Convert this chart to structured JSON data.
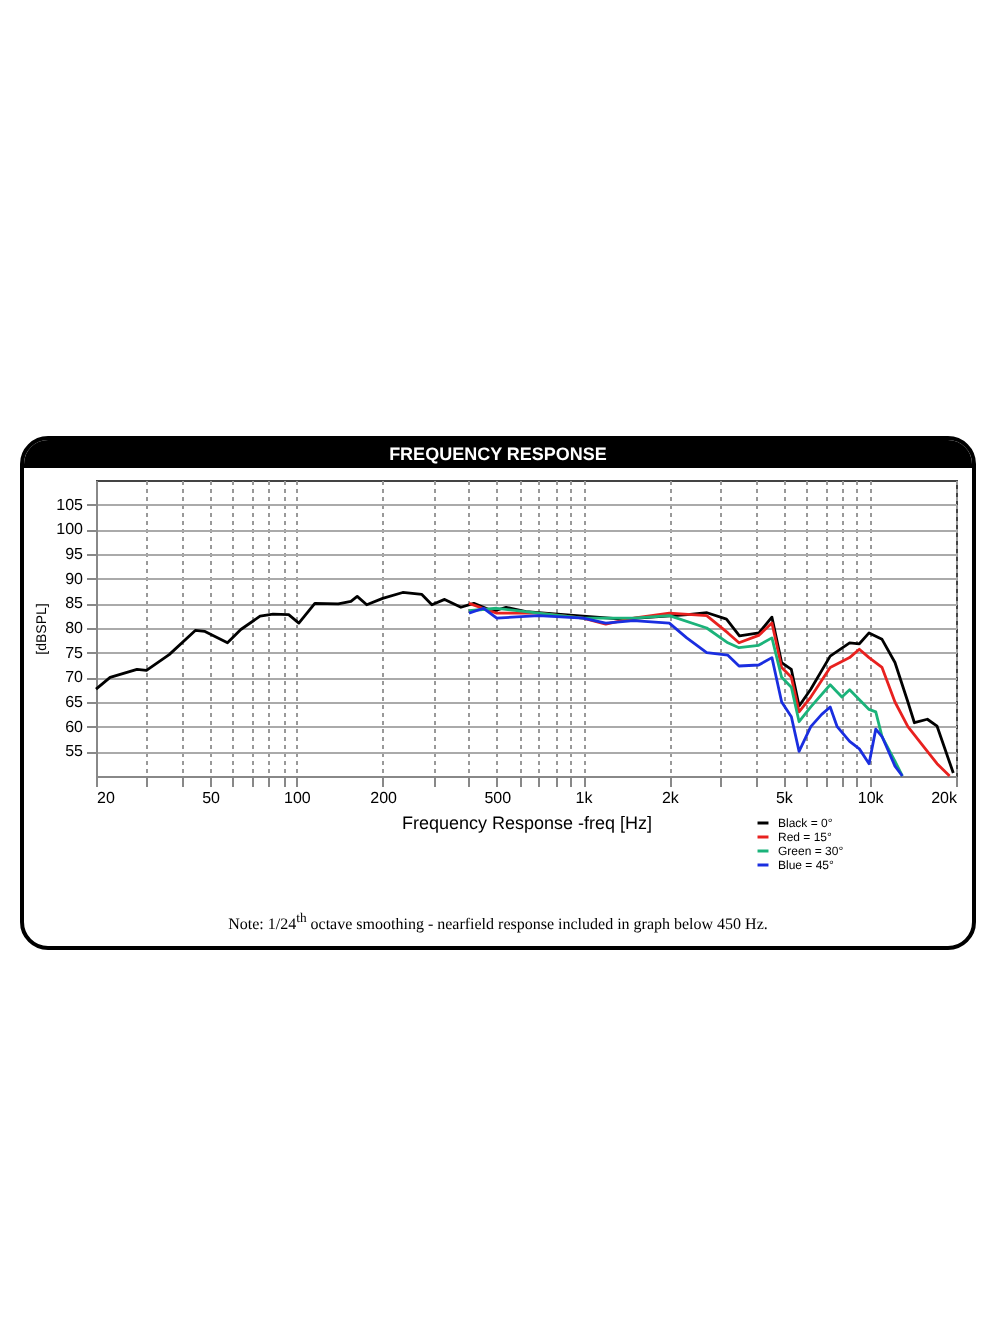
{
  "chart_data": {
    "type": "line",
    "title": "FREQUENCY RESPONSE",
    "xlabel": "Frequency Response -freq [Hz]",
    "ylabel": "[dBSPL]",
    "log": "x",
    "grid": true,
    "legend": "bottom right",
    "line_style": "solid",
    "marker": "none",
    "xlim": [
      20,
      20000
    ],
    "ylim": [
      50,
      110
    ],
    "xticks": [
      20,
      {
        "value": 30,
        "label": null
      },
      {
        "value": 40,
        "label": null
      },
      50,
      {
        "value": 60,
        "label": null
      },
      {
        "value": 70,
        "label": null
      },
      {
        "value": 80,
        "label": null
      },
      {
        "value": 90,
        "label": null
      },
      100,
      200,
      {
        "value": 300,
        "label": null
      },
      {
        "value": 400,
        "label": null
      },
      500,
      {
        "value": 600,
        "label": null
      },
      {
        "value": 700,
        "label": null
      },
      {
        "value": 800,
        "label": null
      },
      {
        "value": 900,
        "label": null
      },
      {
        "value": 1000,
        "label": "1k"
      },
      {
        "value": 2000,
        "label": "2k"
      },
      {
        "value": 3000,
        "label": null
      },
      {
        "value": 4000,
        "label": null
      },
      {
        "value": 5000,
        "label": "5k"
      },
      {
        "value": 6000,
        "label": null
      },
      {
        "value": 7000,
        "label": null
      },
      {
        "value": 8000,
        "label": null
      },
      {
        "value": 9000,
        "label": null
      },
      {
        "value": 10000,
        "label": "10k"
      },
      {
        "value": 20000,
        "label": "20k"
      }
    ],
    "yticks": [
      55,
      60,
      65,
      70,
      75,
      80,
      85,
      90,
      95,
      100,
      105
    ],
    "annotations": [
      "Note: 1/24$^{th}$ octave smoothing - nearfield response included in graph below 450 Hz."
    ],
    "series": [
      {
        "name": "Black = 0°",
        "color": "#000000",
        "x": [
          20,
          22.4,
          27.8,
          30,
          36,
          44.4,
          48,
          57.5,
          64,
          74.7,
          82.9,
          94,
          102,
          116,
          140,
          155,
          163,
          176,
          200,
          235,
          274,
          297,
          329,
          375,
          416,
          486,
          539,
          632,
          1000,
          1377,
          2317,
          2707,
          3165,
          3513,
          4108,
          4558,
          4928,
          5329,
          5672,
          6228,
          7280,
          8511,
          9202,
          9947,
          11040,
          12250,
          13590,
          14320,
          15890,
          17180,
          19570
        ],
        "values": [
          67.6,
          70,
          71.6,
          71.4,
          74.6,
          79.5,
          79.3,
          77,
          79.7,
          82.4,
          82.8,
          82.7,
          81,
          85,
          84.9,
          85.4,
          86.4,
          84.7,
          86,
          87.2,
          86.8,
          84.7,
          85.8,
          84.2,
          85,
          83.4,
          84.2,
          83.3,
          82.4,
          81.8,
          82.7,
          83.1,
          81.8,
          78.4,
          79,
          82.2,
          73,
          71.6,
          64.2,
          67.6,
          74.3,
          77,
          76.8,
          79,
          77.7,
          73,
          65,
          60.8,
          61.5,
          60.1,
          50.6
        ]
      },
      {
        "name": "Red = 15°",
        "color": "#e8211f",
        "x": [
          400,
          500,
          700,
          1000,
          1200,
          1500,
          2000,
          2700,
          3200,
          3500,
          4100,
          4560,
          4930,
          5330,
          5670,
          6230,
          7280,
          8510,
          9200,
          9947,
          11040,
          12250,
          13590,
          15890,
          17180,
          19000
        ],
        "values": [
          85,
          83,
          83,
          82,
          80.8,
          82,
          83,
          82.5,
          79,
          77,
          78.5,
          81,
          72,
          70,
          63,
          66,
          72,
          74,
          75.7,
          74,
          72,
          65,
          60,
          55,
          52.5,
          50
        ]
      },
      {
        "name": "Green = 30°",
        "color": "#1bb37a",
        "x": [
          400,
          500,
          700,
          1000,
          1500,
          2000,
          2700,
          3200,
          3500,
          4100,
          4560,
          4930,
          5330,
          5670,
          6230,
          7280,
          8000,
          8511,
          9947,
          10500,
          11040,
          12250,
          13000
        ],
        "values": [
          83.5,
          84,
          83,
          82,
          82,
          82.5,
          80,
          77,
          76,
          76.5,
          78,
          70,
          68,
          61,
          64,
          68.5,
          66,
          67.5,
          63.5,
          63,
          58,
          53,
          50
        ]
      },
      {
        "name": "Blue = 45°",
        "color": "#1a2ee0",
        "x": [
          400,
          450,
          500,
          700,
          1000,
          1200,
          1500,
          2000,
          2300,
          2700,
          3200,
          3500,
          4100,
          4560,
          4930,
          5330,
          5670,
          6230,
          6800,
          7280,
          7700,
          8511,
          9202,
          9947,
          10500,
          11040,
          12250,
          13000
        ],
        "values": [
          83,
          84,
          82,
          82.5,
          82,
          81,
          81.5,
          81,
          78,
          75,
          74.5,
          72.3,
          72.5,
          74,
          65,
          62,
          55,
          60,
          62.5,
          64,
          60,
          57,
          55.5,
          52.5,
          59.5,
          58,
          52,
          50
        ]
      }
    ]
  }
}
